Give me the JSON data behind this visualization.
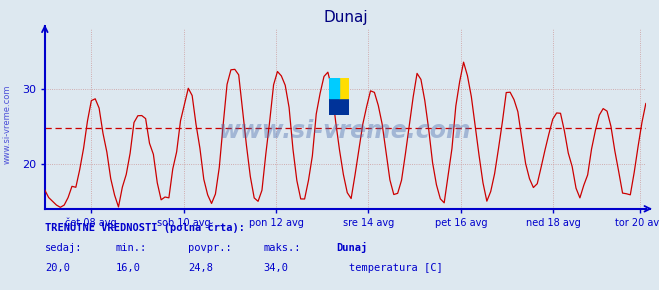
{
  "title": "Dunaj",
  "title_color": "#000080",
  "bg_color": "#dde8f0",
  "line_color": "#cc0000",
  "dashed_line_color": "#cc0000",
  "dashed_line_value": 24.8,
  "y_min": 14,
  "y_max": 38,
  "y_ticks": [
    20,
    30
  ],
  "x_labels": [
    "čet 08 avg",
    "sob 10 avg",
    "pon 12 avg",
    "sre 14 avg",
    "pet 16 avg",
    "ned 18 avg",
    "tor 20 avg"
  ],
  "axis_color": "#0000cc",
  "grid_color": "#cc9999",
  "watermark": "www.si-vreme.com",
  "watermark_color": "#4466aa",
  "watermark_alpha": 0.38,
  "ylabel_text": "www.si-vreme.com",
  "ylabel_color": "#0000cc",
  "bottom_text1": "TRENUTNE VREDNOSTI (polna črta):",
  "bottom_labels": [
    "sedaj:",
    "min.:",
    "povpr.:",
    "maks.:"
  ],
  "bottom_values": [
    "20,0",
    "16,0",
    "24,8",
    "34,0"
  ],
  "bottom_dunaj": "Dunaj",
  "bottom_temp": "temperatura [C]",
  "legend_color": "#cc0000",
  "n_days": 13,
  "seed": 7
}
